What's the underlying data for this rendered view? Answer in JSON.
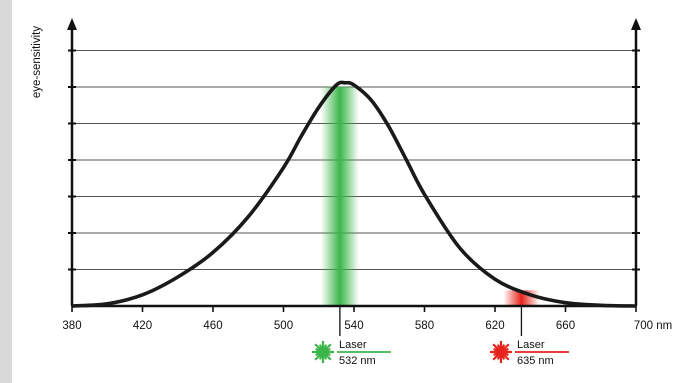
{
  "chart_data": {
    "type": "line",
    "ylabel": "eye-sensitivity",
    "x_tick_labels": [
      "380",
      "420",
      "460",
      "500",
      "540",
      "580",
      "620",
      "660",
      "700 nm"
    ],
    "x_ticks": [
      380,
      420,
      460,
      500,
      540,
      580,
      620,
      660,
      700
    ],
    "xlim": [
      380,
      700
    ],
    "ylim": [
      0,
      1.12
    ],
    "y_gridlines": 7,
    "series": [
      {
        "x": [
          380,
          400,
          420,
          440,
          460,
          480,
          500,
          510,
          520,
          530,
          535,
          540,
          550,
          560,
          570,
          580,
          600,
          620,
          640,
          660,
          680,
          700
        ],
        "values": [
          0.0,
          0.01,
          0.05,
          0.13,
          0.24,
          0.4,
          0.62,
          0.76,
          0.89,
          0.99,
          1.0,
          0.99,
          0.92,
          0.8,
          0.65,
          0.5,
          0.26,
          0.12,
          0.05,
          0.015,
          0.003,
          0.0
        ]
      }
    ],
    "annotations": [
      {
        "label": "Laser",
        "wavelength_label": "532 nm",
        "wavelength": 532,
        "color": "#3cb54a"
      },
      {
        "label": "Laser",
        "wavelength_label": "635 nm",
        "wavelength": 635,
        "color": "#e8231c"
      }
    ]
  }
}
